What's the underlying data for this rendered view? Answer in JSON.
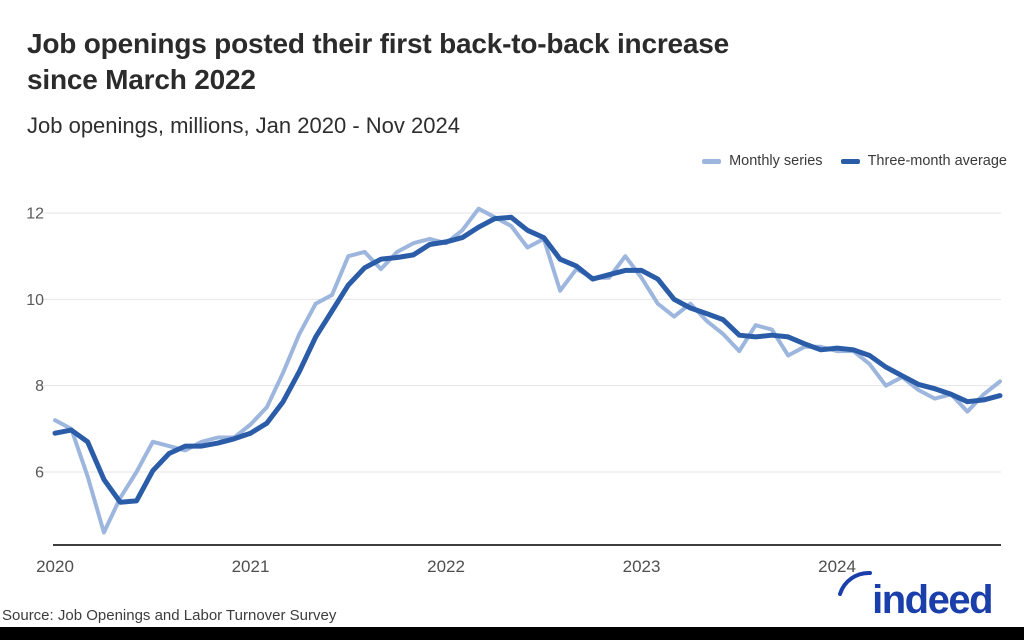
{
  "header": {
    "title_line1": "Job openings posted their first back-to-back increase",
    "title_line2": "since March 2022",
    "subtitle": "Job openings, millions, Jan 2020 - Nov 2024"
  },
  "legend": {
    "items": [
      {
        "label": "Monthly series",
        "color": "#9db6dd"
      },
      {
        "label": "Three-month average",
        "color": "#2a5ca8"
      }
    ]
  },
  "footer": {
    "source": "Source: Job Openings and Labor Turnover Survey",
    "logo_text": "indeed",
    "logo_color": "#1a3fab"
  },
  "colors": {
    "monthly_line": "#9db6dd",
    "average_line": "#2a5ca8",
    "gridline": "#e4e4e4",
    "axis_line": "#3f3f3f",
    "tick_label": "#4f4f4f"
  },
  "chart_data": {
    "type": "line",
    "title": "Job openings posted their first back-to-back increase since March 2022",
    "subtitle": "Job openings, millions, Jan 2020 - Nov 2024",
    "x_range": [
      "Jan 2020",
      "Nov 2024"
    ],
    "x_tick_labels": [
      "2020",
      "2021",
      "2022",
      "2023",
      "2024"
    ],
    "x_tick_month_indices": [
      0,
      12,
      24,
      36,
      48
    ],
    "y_ticks": [
      6,
      8,
      10,
      12
    ],
    "ylim": [
      4.3,
      12.55
    ],
    "grid": "horizontal",
    "legend_position": "top-right",
    "unit": "millions of job openings",
    "series": [
      {
        "name": "Monthly series",
        "color": "#9db6dd",
        "values": [
          7.2,
          7.0,
          5.9,
          4.6,
          5.4,
          6.0,
          6.7,
          6.6,
          6.5,
          6.7,
          6.8,
          6.8,
          7.1,
          7.5,
          8.3,
          9.2,
          9.9,
          10.1,
          11.0,
          11.1,
          10.7,
          11.1,
          11.3,
          11.4,
          11.3,
          11.6,
          12.1,
          11.9,
          11.7,
          11.2,
          11.4,
          10.2,
          10.7,
          10.5,
          10.5,
          11.0,
          10.5,
          9.9,
          9.6,
          9.9,
          9.5,
          9.2,
          8.8,
          9.4,
          9.3,
          8.7,
          8.9,
          8.9,
          8.8,
          8.8,
          8.5,
          8.0,
          8.2,
          7.9,
          7.7,
          7.8,
          7.4,
          7.8,
          8.1
        ]
      },
      {
        "name": "Three-month average",
        "color": "#2a5ca8",
        "values": [
          6.9,
          6.97,
          6.7,
          5.83,
          5.3,
          5.33,
          6.03,
          6.43,
          6.6,
          6.6,
          6.67,
          6.77,
          6.9,
          7.13,
          7.63,
          8.33,
          9.13,
          9.73,
          10.33,
          10.73,
          10.93,
          10.97,
          11.03,
          11.27,
          11.33,
          11.43,
          11.67,
          11.87,
          11.9,
          11.6,
          11.43,
          10.93,
          10.77,
          10.47,
          10.57,
          10.67,
          10.67,
          10.47,
          10.0,
          9.8,
          9.67,
          9.53,
          9.17,
          9.13,
          9.17,
          9.13,
          8.97,
          8.83,
          8.87,
          8.83,
          8.7,
          8.43,
          8.23,
          8.03,
          7.93,
          7.8,
          7.63,
          7.67,
          7.77
        ]
      }
    ]
  }
}
